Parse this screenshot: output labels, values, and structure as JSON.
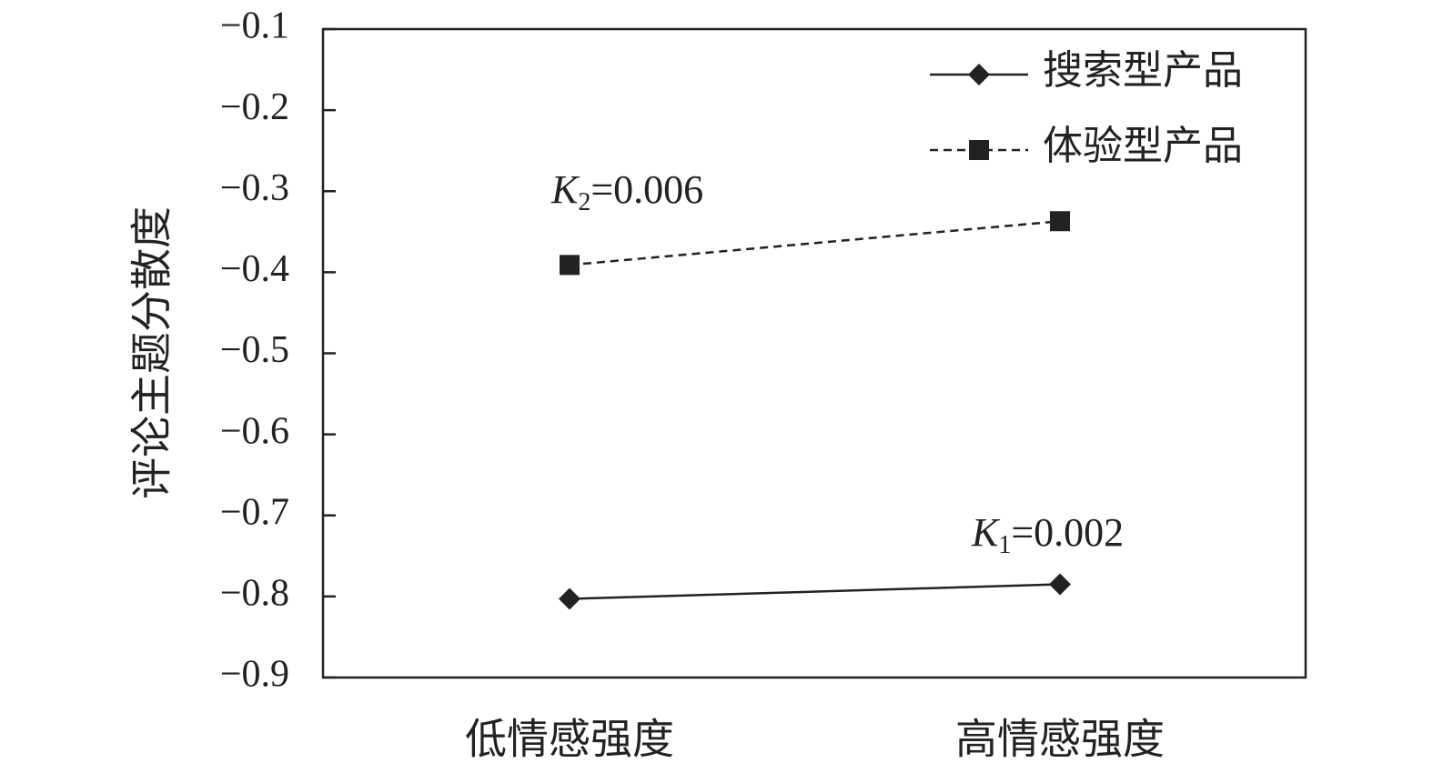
{
  "chart_data": {
    "type": "line",
    "title": "",
    "xlabel": "",
    "ylabel": "评论主题分散度",
    "categories": [
      "低情感强度",
      "高情感强度"
    ],
    "ylim": [
      -0.9,
      -0.1
    ],
    "yticks": [
      "−0.1",
      "−0.2",
      "−0.3",
      "−0.4",
      "−0.5",
      "−0.6",
      "−0.7",
      "−0.8",
      "−0.9"
    ],
    "ytick_values": [
      -0.1,
      -0.2,
      -0.3,
      -0.4,
      -0.5,
      -0.6,
      -0.7,
      -0.8,
      -0.9
    ],
    "series": [
      {
        "name": "搜索型产品",
        "values": [
          -0.803,
          -0.785
        ],
        "marker": "diamond",
        "line": "solid"
      },
      {
        "name": "体验型产品",
        "values": [
          -0.391,
          -0.337
        ],
        "marker": "square",
        "line": "dashed"
      }
    ],
    "annotations": [
      {
        "var": "K",
        "sub": "2",
        "text": "=0.006",
        "series": 1
      },
      {
        "var": "K",
        "sub": "1",
        "text": "=0.002",
        "series": 0
      }
    ],
    "legend_position": "top-right",
    "grid": false,
    "colors": {
      "line": "#222222",
      "background": "#ffffff"
    }
  }
}
